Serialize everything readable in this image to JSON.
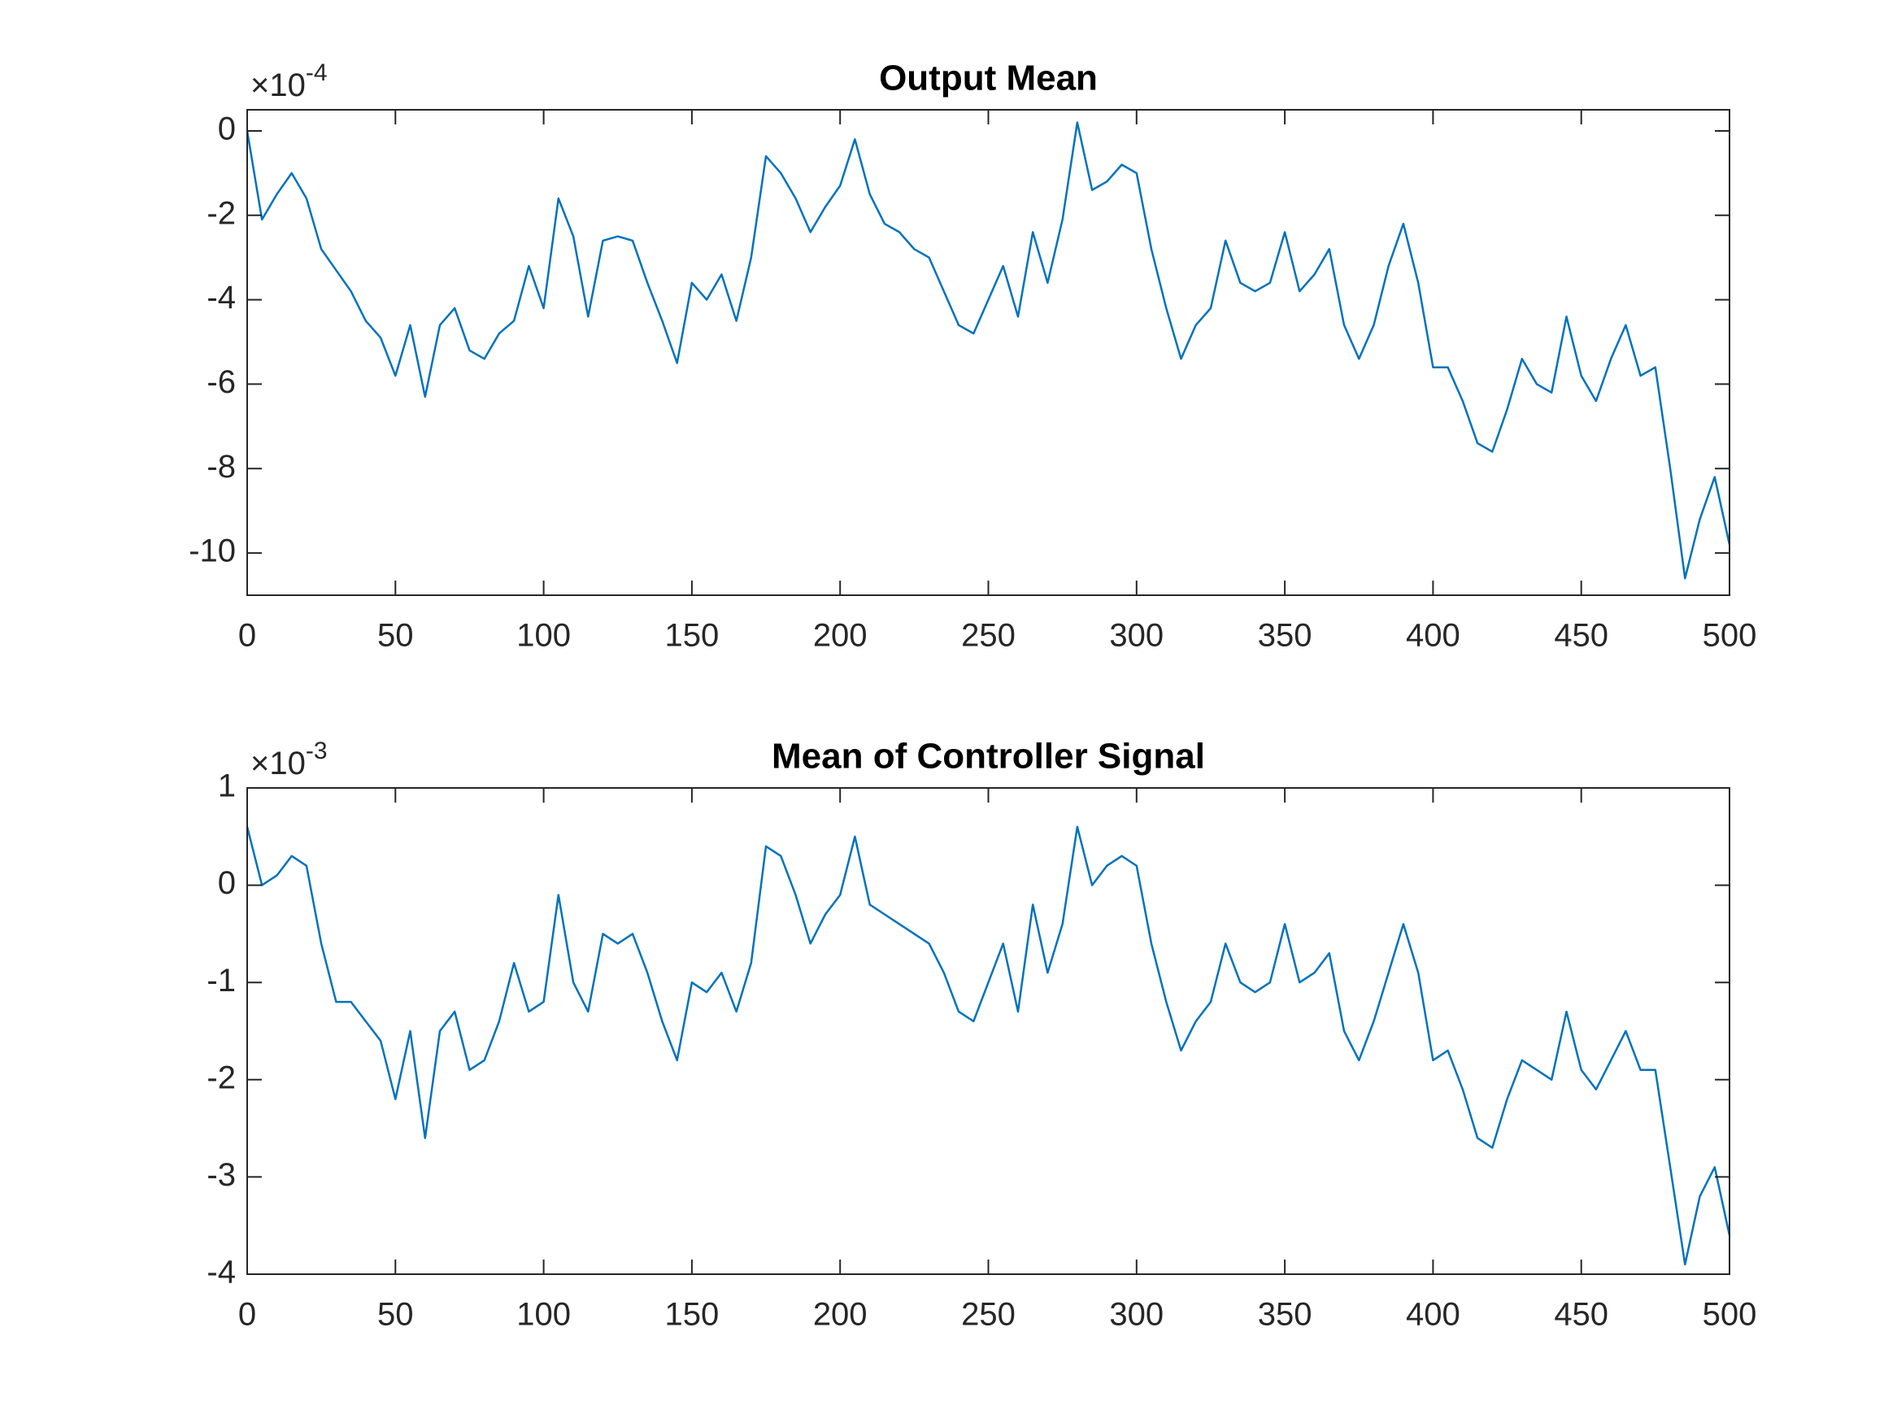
{
  "chart_data": [
    {
      "type": "line",
      "title": "Output Mean",
      "y_multiplier": {
        "base": "×10",
        "exponent": "-4"
      },
      "xlim": [
        0,
        500
      ],
      "xticks": [
        0,
        50,
        100,
        150,
        200,
        250,
        300,
        350,
        400,
        450,
        500
      ],
      "ylim": [
        -11,
        0.5
      ],
      "yticks": [
        -10,
        -8,
        -6,
        -4,
        -2,
        0
      ],
      "x": [
        0,
        5,
        10,
        15,
        20,
        25,
        30,
        35,
        40,
        45,
        50,
        55,
        60,
        65,
        70,
        75,
        80,
        85,
        90,
        95,
        100,
        105,
        110,
        115,
        120,
        125,
        130,
        135,
        140,
        145,
        150,
        155,
        160,
        165,
        170,
        175,
        180,
        185,
        190,
        195,
        200,
        205,
        210,
        215,
        220,
        225,
        230,
        235,
        240,
        245,
        250,
        255,
        260,
        265,
        270,
        275,
        280,
        285,
        290,
        295,
        300,
        305,
        310,
        315,
        320,
        325,
        330,
        335,
        340,
        345,
        350,
        355,
        360,
        365,
        370,
        375,
        380,
        385,
        390,
        395,
        400,
        405,
        410,
        415,
        420,
        425,
        430,
        435,
        440,
        445,
        450,
        455,
        460,
        465,
        470,
        475,
        480,
        485,
        490,
        495,
        500
      ],
      "series": [
        {
          "color": "#0072BD",
          "values": [
            0,
            -2.1,
            -1.5,
            -1.0,
            -1.6,
            -2.8,
            -3.3,
            -3.8,
            -4.5,
            -4.9,
            -5.8,
            -4.6,
            -6.3,
            -4.6,
            -4.2,
            -5.2,
            -5.4,
            -4.8,
            -4.5,
            -3.2,
            -4.2,
            -1.6,
            -2.5,
            -4.4,
            -2.6,
            -2.5,
            -2.6,
            -3.6,
            -4.5,
            -5.5,
            -3.6,
            -4.0,
            -3.4,
            -4.5,
            -3.0,
            -0.6,
            -1.0,
            -1.6,
            -2.4,
            -1.8,
            -1.3,
            -0.2,
            -1.5,
            -2.2,
            -2.4,
            -2.8,
            -3.0,
            -3.8,
            -4.6,
            -4.8,
            -4.0,
            -3.2,
            -4.4,
            -2.4,
            -3.6,
            -2.1,
            0.2,
            -1.4,
            -1.2,
            -0.8,
            -1.0,
            -2.8,
            -4.2,
            -5.4,
            -4.6,
            -4.2,
            -2.6,
            -3.6,
            -3.8,
            -3.6,
            -2.4,
            -3.8,
            -3.4,
            -2.8,
            -4.6,
            -5.4,
            -4.6,
            -3.2,
            -2.2,
            -3.6,
            -5.6,
            -5.6,
            -6.4,
            -7.4,
            -7.6,
            -6.6,
            -5.4,
            -6.0,
            -6.2,
            -4.4,
            -5.8,
            -6.4,
            -5.4,
            -4.6,
            -5.8,
            -5.6,
            -8.0,
            -10.6,
            -9.2,
            -8.2,
            -9.8
          ]
        }
      ]
    },
    {
      "type": "line",
      "title": "Mean of Controller Signal",
      "y_multiplier": {
        "base": "×10",
        "exponent": "-3"
      },
      "xlim": [
        0,
        500
      ],
      "xticks": [
        0,
        50,
        100,
        150,
        200,
        250,
        300,
        350,
        400,
        450,
        500
      ],
      "ylim": [
        -4,
        1
      ],
      "yticks": [
        -4,
        -3,
        -2,
        -1,
        0,
        1
      ],
      "x": [
        0,
        5,
        10,
        15,
        20,
        25,
        30,
        35,
        40,
        45,
        50,
        55,
        60,
        65,
        70,
        75,
        80,
        85,
        90,
        95,
        100,
        105,
        110,
        115,
        120,
        125,
        130,
        135,
        140,
        145,
        150,
        155,
        160,
        165,
        170,
        175,
        180,
        185,
        190,
        195,
        200,
        205,
        210,
        215,
        220,
        225,
        230,
        235,
        240,
        245,
        250,
        255,
        260,
        265,
        270,
        275,
        280,
        285,
        290,
        295,
        300,
        305,
        310,
        315,
        320,
        325,
        330,
        335,
        340,
        345,
        350,
        355,
        360,
        365,
        370,
        375,
        380,
        385,
        390,
        395,
        400,
        405,
        410,
        415,
        420,
        425,
        430,
        435,
        440,
        445,
        450,
        455,
        460,
        465,
        470,
        475,
        480,
        485,
        490,
        495,
        500
      ],
      "series": [
        {
          "color": "#0072BD",
          "values": [
            0.6,
            0.0,
            0.1,
            0.3,
            0.2,
            -0.6,
            -1.2,
            -1.2,
            -1.4,
            -1.6,
            -2.2,
            -1.5,
            -2.6,
            -1.5,
            -1.3,
            -1.9,
            -1.8,
            -1.4,
            -0.8,
            -1.3,
            -1.2,
            -0.1,
            -1.0,
            -1.3,
            -0.5,
            -0.6,
            -0.5,
            -0.9,
            -1.4,
            -1.8,
            -1.0,
            -1.1,
            -0.9,
            -1.3,
            -0.8,
            0.4,
            0.3,
            -0.1,
            -0.6,
            -0.3,
            -0.1,
            0.5,
            -0.2,
            -0.3,
            -0.4,
            -0.5,
            -0.6,
            -0.9,
            -1.3,
            -1.4,
            -1.0,
            -0.6,
            -1.3,
            -0.2,
            -0.9,
            -0.4,
            0.6,
            0.0,
            0.2,
            0.3,
            0.2,
            -0.6,
            -1.2,
            -1.7,
            -1.4,
            -1.2,
            -0.6,
            -1.0,
            -1.1,
            -1.0,
            -0.4,
            -1.0,
            -0.9,
            -0.7,
            -1.5,
            -1.8,
            -1.4,
            -0.9,
            -0.4,
            -0.9,
            -1.8,
            -1.7,
            -2.1,
            -2.6,
            -2.7,
            -2.2,
            -1.8,
            -1.9,
            -2.0,
            -1.3,
            -1.9,
            -2.1,
            -1.8,
            -1.5,
            -1.9,
            -1.9,
            -2.9,
            -3.9,
            -3.2,
            -2.9,
            -3.6
          ]
        }
      ]
    }
  ]
}
